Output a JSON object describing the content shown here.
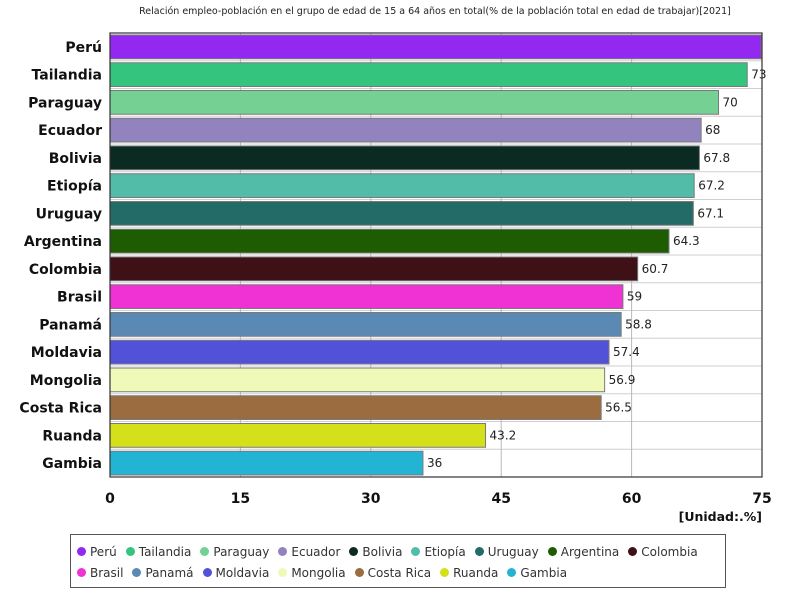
{
  "chart_data": {
    "type": "bar",
    "orientation": "horizontal",
    "title": "Relación empleo-población en el grupo de edad de 15 a 64 años en total(% de la población total en edad de trabajar)[2021]",
    "unit_label": "[Unidad:.%]",
    "xlim": [
      0,
      75
    ],
    "xticks": [
      0,
      15,
      30,
      45,
      60,
      75
    ],
    "grid": true,
    "legend_position": "bottom",
    "categories": [
      "Perú",
      "Tailandia",
      "Paraguay",
      "Ecuador",
      "Bolivia",
      "Etiopía",
      "Uruguay",
      "Argentina",
      "Colombia",
      "Brasil",
      "Panamá",
      "Moldavia",
      "Mongolia",
      "Costa Rica",
      "Ruanda",
      "Gambia"
    ],
    "values": [
      74.9,
      73.3,
      70,
      68,
      67.8,
      67.2,
      67.1,
      64.3,
      60.7,
      59,
      58.8,
      57.4,
      56.9,
      56.5,
      43.2,
      36
    ],
    "value_labels": [
      "",
      "73",
      "70",
      "68",
      "67.8",
      "67.2",
      "67.1",
      "64.3",
      "60.7",
      "59",
      "58.8",
      "57.4",
      "56.9",
      "56.5",
      "43.2",
      "36"
    ],
    "colors": [
      "#9328f0",
      "#34c47e",
      "#74d093",
      "#9283bf",
      "#0b2a22",
      "#52bca8",
      "#236b66",
      "#1e5c02",
      "#3e1117",
      "#f032d5",
      "#5a89b4",
      "#5252d8",
      "#eff9b8",
      "#9b6c40",
      "#d4e019",
      "#22b4d2"
    ]
  }
}
